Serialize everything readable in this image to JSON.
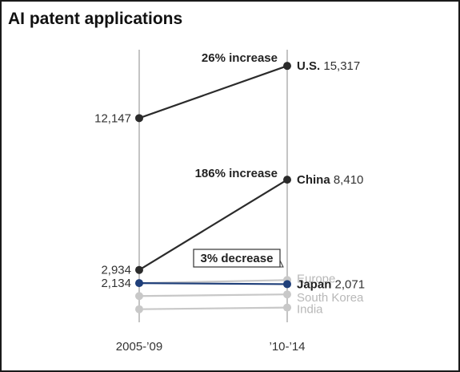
{
  "chart_data": {
    "type": "line",
    "title": "AI patent applications",
    "x": [
      "2005-’09",
      "’10-’14"
    ],
    "series": [
      {
        "name": "U.S.",
        "values": [
          12147,
          15317
        ],
        "color": "#2b2b2b",
        "start_label": "12,147",
        "end_label": "15,317"
      },
      {
        "name": "China",
        "values": [
          2934,
          8410
        ],
        "color": "#2b2b2b",
        "start_label": "2,934",
        "end_label": "8,410"
      },
      {
        "name": "Europe",
        "values": [
          2134,
          2320
        ],
        "color": "#c8c8c8"
      },
      {
        "name": "Japan",
        "values": [
          2134,
          2071
        ],
        "color": "#1f3f7a",
        "start_label": "2,134",
        "end_label": "2,071"
      },
      {
        "name": "South Korea",
        "values": [
          1350,
          1450
        ],
        "color": "#c8c8c8"
      },
      {
        "name": "India",
        "values": [
          550,
          650
        ],
        "color": "#c8c8c8"
      }
    ],
    "annotations": [
      {
        "text": "26% increase",
        "series": "U.S."
      },
      {
        "text": "186% increase",
        "series": "China"
      },
      {
        "text": "3% decrease",
        "series": "Japan",
        "boxed": true
      }
    ],
    "ylim": [
      0,
      17000
    ],
    "grid": false,
    "colors": {
      "highlight": "#1f3f7a",
      "dark": "#2b2b2b",
      "muted": "#c8c8c8",
      "axis": "#b0b0b0"
    }
  }
}
